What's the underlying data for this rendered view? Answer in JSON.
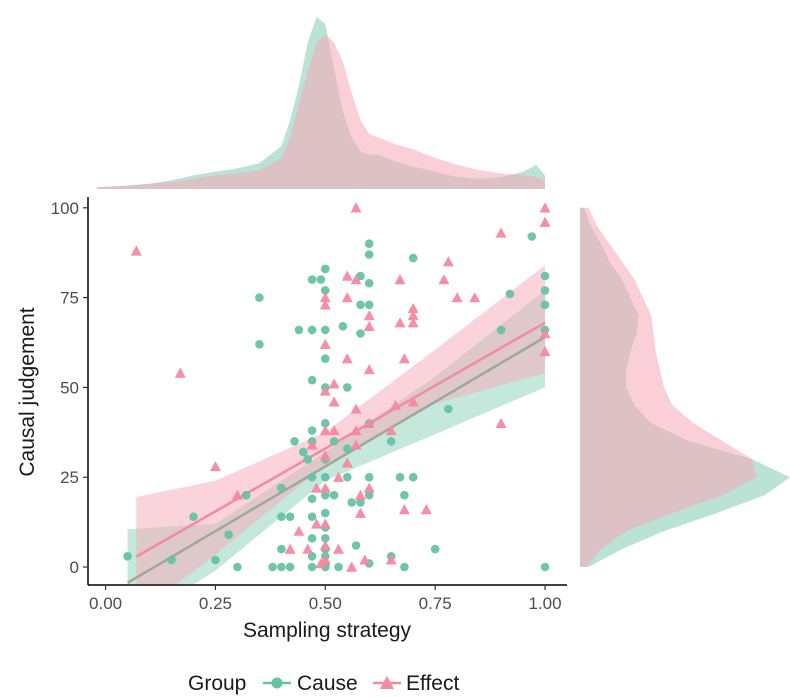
{
  "chart_data": {
    "type": "scatter",
    "title": "",
    "xlabel": "Sampling strategy",
    "ylabel": "Causal judgement",
    "xlim": [
      -0.04,
      1.05
    ],
    "ylim": [
      -5,
      103
    ],
    "x_ticks": [
      0.0,
      0.25,
      0.5,
      0.75,
      1.0
    ],
    "x_tick_labels": [
      "0.00",
      "0.25",
      "0.50",
      "0.75",
      "1.00"
    ],
    "y_ticks": [
      0,
      25,
      50,
      75,
      100
    ],
    "y_tick_labels": [
      "0",
      "25",
      "50",
      "75",
      "100"
    ],
    "grid": false,
    "legend": {
      "title": "Group",
      "placement": "bottom",
      "items": [
        "Cause",
        "Effect"
      ]
    },
    "colors": {
      "Cause": "#66c2a5",
      "Effect": "#f4899f",
      "cause_line": "#9ea892",
      "effect_line": "#f38ba0"
    },
    "series": [
      {
        "name": "Cause",
        "marker": "circle",
        "points": [
          [
            0.05,
            3
          ],
          [
            0.15,
            2
          ],
          [
            0.2,
            14
          ],
          [
            0.25,
            2
          ],
          [
            0.28,
            9
          ],
          [
            0.3,
            0
          ],
          [
            0.32,
            20
          ],
          [
            0.35,
            75
          ],
          [
            0.35,
            62
          ],
          [
            0.38,
            0
          ],
          [
            0.4,
            22
          ],
          [
            0.4,
            14
          ],
          [
            0.4,
            5
          ],
          [
            0.4,
            0
          ],
          [
            0.42,
            14
          ],
          [
            0.42,
            0
          ],
          [
            0.43,
            35
          ],
          [
            0.44,
            66
          ],
          [
            0.45,
            32
          ],
          [
            0.46,
            30
          ],
          [
            0.47,
            80
          ],
          [
            0.47,
            66
          ],
          [
            0.47,
            52
          ],
          [
            0.47,
            38
          ],
          [
            0.47,
            35
          ],
          [
            0.47,
            25
          ],
          [
            0.47,
            19
          ],
          [
            0.47,
            14
          ],
          [
            0.47,
            8
          ],
          [
            0.47,
            3
          ],
          [
            0.47,
            0
          ],
          [
            0.49,
            80
          ],
          [
            0.5,
            83
          ],
          [
            0.5,
            77
          ],
          [
            0.5,
            66
          ],
          [
            0.5,
            58
          ],
          [
            0.5,
            50
          ],
          [
            0.5,
            40
          ],
          [
            0.5,
            30
          ],
          [
            0.5,
            25
          ],
          [
            0.5,
            20
          ],
          [
            0.5,
            15
          ],
          [
            0.5,
            11
          ],
          [
            0.5,
            8
          ],
          [
            0.5,
            5
          ],
          [
            0.5,
            3
          ],
          [
            0.5,
            1
          ],
          [
            0.5,
            0
          ],
          [
            0.52,
            35
          ],
          [
            0.52,
            20
          ],
          [
            0.53,
            0
          ],
          [
            0.54,
            67
          ],
          [
            0.55,
            50
          ],
          [
            0.55,
            33
          ],
          [
            0.55,
            25
          ],
          [
            0.56,
            18
          ],
          [
            0.57,
            6
          ],
          [
            0.58,
            81
          ],
          [
            0.58,
            73
          ],
          [
            0.58,
            65
          ],
          [
            0.58,
            18
          ],
          [
            0.6,
            90
          ],
          [
            0.6,
            87
          ],
          [
            0.6,
            79
          ],
          [
            0.6,
            73
          ],
          [
            0.6,
            40
          ],
          [
            0.6,
            25
          ],
          [
            0.6,
            20
          ],
          [
            0.6,
            1
          ],
          [
            0.65,
            3
          ],
          [
            0.65,
            35
          ],
          [
            0.67,
            25
          ],
          [
            0.68,
            20
          ],
          [
            0.68,
            0
          ],
          [
            0.7,
            86
          ],
          [
            0.7,
            25
          ],
          [
            0.75,
            5
          ],
          [
            0.78,
            44
          ],
          [
            0.9,
            66
          ],
          [
            0.92,
            76
          ],
          [
            0.97,
            92
          ],
          [
            1.0,
            81
          ],
          [
            1.0,
            77
          ],
          [
            1.0,
            73
          ],
          [
            1.0,
            66
          ],
          [
            1.0,
            0
          ]
        ]
      },
      {
        "name": "Effect",
        "marker": "triangle",
        "points": [
          [
            0.07,
            88
          ],
          [
            0.17,
            54
          ],
          [
            0.25,
            28
          ],
          [
            0.3,
            20
          ],
          [
            0.42,
            5
          ],
          [
            0.44,
            10
          ],
          [
            0.46,
            5
          ],
          [
            0.47,
            34
          ],
          [
            0.48,
            22
          ],
          [
            0.48,
            12
          ],
          [
            0.49,
            1
          ],
          [
            0.5,
            75
          ],
          [
            0.5,
            73
          ],
          [
            0.5,
            62
          ],
          [
            0.5,
            49
          ],
          [
            0.5,
            38
          ],
          [
            0.5,
            31
          ],
          [
            0.5,
            22
          ],
          [
            0.5,
            12
          ],
          [
            0.5,
            6
          ],
          [
            0.5,
            2
          ],
          [
            0.52,
            51
          ],
          [
            0.52,
            46
          ],
          [
            0.52,
            38
          ],
          [
            0.53,
            25
          ],
          [
            0.53,
            5
          ],
          [
            0.55,
            81
          ],
          [
            0.55,
            75
          ],
          [
            0.55,
            58
          ],
          [
            0.55,
            29
          ],
          [
            0.56,
            0
          ],
          [
            0.57,
            100
          ],
          [
            0.57,
            80
          ],
          [
            0.57,
            44
          ],
          [
            0.57,
            38
          ],
          [
            0.57,
            34
          ],
          [
            0.58,
            20
          ],
          [
            0.58,
            15
          ],
          [
            0.59,
            2
          ],
          [
            0.6,
            70
          ],
          [
            0.6,
            67
          ],
          [
            0.6,
            55
          ],
          [
            0.6,
            40
          ],
          [
            0.6,
            22
          ],
          [
            0.65,
            2
          ],
          [
            0.65,
            38
          ],
          [
            0.66,
            45
          ],
          [
            0.67,
            68
          ],
          [
            0.67,
            80
          ],
          [
            0.68,
            58
          ],
          [
            0.68,
            16
          ],
          [
            0.7,
            46
          ],
          [
            0.7,
            72
          ],
          [
            0.7,
            70
          ],
          [
            0.7,
            68
          ],
          [
            0.73,
            16
          ],
          [
            0.77,
            80
          ],
          [
            0.78,
            85
          ],
          [
            0.8,
            75
          ],
          [
            0.84,
            75
          ],
          [
            0.9,
            93
          ],
          [
            0.9,
            40
          ],
          [
            1.0,
            100
          ],
          [
            1.0,
            96
          ],
          [
            1.0,
            60
          ],
          [
            1.0,
            65
          ]
        ]
      }
    ],
    "regression": {
      "Cause": {
        "x_range": [
          0.05,
          1.0
        ],
        "intercept": -8.0,
        "slope": 72.0,
        "band": [
          [
            0.05,
            -16.5,
            10.5
          ],
          [
            0.25,
            -1.0,
            12.0
          ],
          [
            0.5,
            24.0,
            32.0
          ],
          [
            0.75,
            37.0,
            53.0
          ],
          [
            1.0,
            50.0,
            77.0
          ]
        ]
      },
      "Effect": {
        "x_range": [
          0.07,
          1.0
        ],
        "intercept": -2.0,
        "slope": 70.0,
        "band": [
          [
            0.07,
            -13.5,
            19.5
          ],
          [
            0.25,
            3.5,
            24.0
          ],
          [
            0.5,
            28.5,
            37.5
          ],
          [
            0.75,
            45.5,
            60.5
          ],
          [
            1.0,
            54.0,
            84.0
          ]
        ]
      }
    },
    "marginal_density": {
      "top": {
        "x": [
          -0.02,
          0.05,
          0.1,
          0.15,
          0.2,
          0.25,
          0.3,
          0.35,
          0.4,
          0.42,
          0.44,
          0.46,
          0.48,
          0.5,
          0.52,
          0.54,
          0.56,
          0.58,
          0.6,
          0.62,
          0.64,
          0.66,
          0.7,
          0.75,
          0.8,
          0.85,
          0.9,
          0.95,
          0.98,
          1.0
        ],
        "Cause": [
          0.01,
          0.02,
          0.03,
          0.05,
          0.08,
          0.1,
          0.12,
          0.15,
          0.25,
          0.4,
          0.6,
          0.85,
          1.0,
          0.96,
          0.7,
          0.45,
          0.3,
          0.22,
          0.2,
          0.2,
          0.18,
          0.16,
          0.13,
          0.1,
          0.07,
          0.06,
          0.07,
          0.1,
          0.14,
          0.08
        ],
        "Effect": [
          0.01,
          0.02,
          0.03,
          0.04,
          0.06,
          0.08,
          0.09,
          0.11,
          0.18,
          0.3,
          0.5,
          0.68,
          0.85,
          0.9,
          0.85,
          0.74,
          0.56,
          0.4,
          0.32,
          0.3,
          0.28,
          0.26,
          0.23,
          0.18,
          0.14,
          0.11,
          0.09,
          0.08,
          0.07,
          0.05
        ]
      },
      "right": {
        "y": [
          0,
          5,
          10,
          15,
          20,
          25,
          30,
          35,
          40,
          45,
          50,
          55,
          60,
          65,
          70,
          75,
          80,
          85,
          90,
          95,
          100
        ],
        "Cause": [
          0.04,
          0.2,
          0.4,
          0.65,
          0.88,
          1.0,
          0.82,
          0.52,
          0.34,
          0.26,
          0.22,
          0.22,
          0.24,
          0.27,
          0.28,
          0.24,
          0.2,
          0.14,
          0.1,
          0.05,
          0.02
        ],
        "Effect": [
          0.03,
          0.1,
          0.22,
          0.44,
          0.68,
          0.84,
          0.82,
          0.68,
          0.54,
          0.44,
          0.4,
          0.38,
          0.36,
          0.35,
          0.34,
          0.3,
          0.26,
          0.2,
          0.14,
          0.08,
          0.04
        ]
      }
    }
  }
}
